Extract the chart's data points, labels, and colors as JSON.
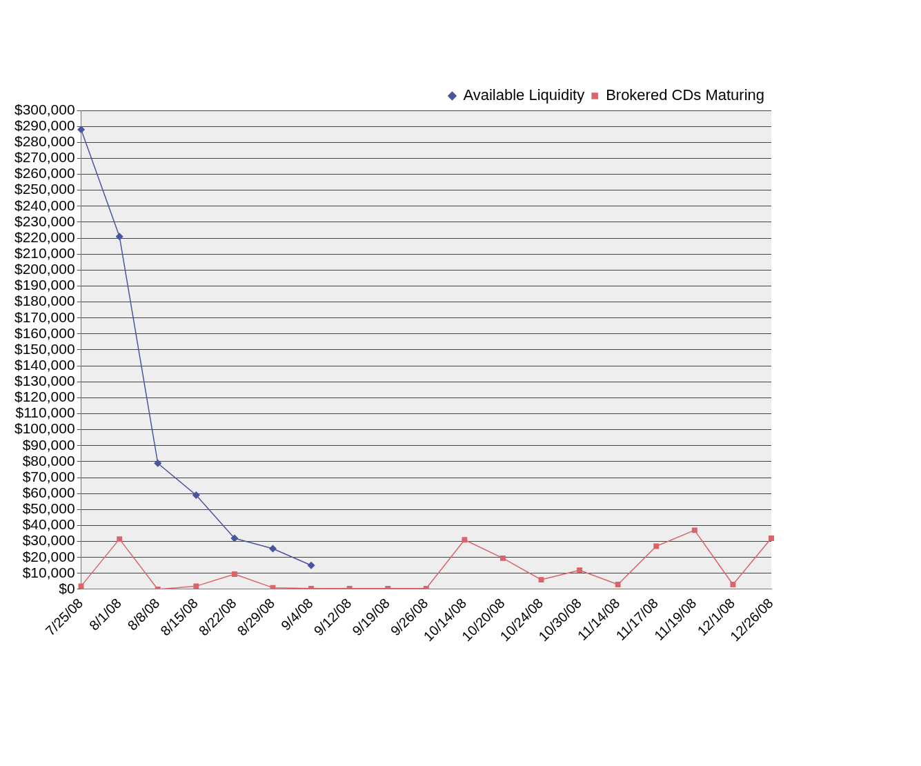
{
  "chart_data": {
    "type": "line",
    "categories": [
      "7/25/08",
      "8/1/08",
      "8/8/08",
      "8/15/08",
      "8/22/08",
      "8/29/08",
      "9/4/08",
      "9/12/08",
      "9/19/08",
      "9/26/08",
      "10/14/08",
      "10/20/08",
      "10/24/08",
      "10/30/08",
      "11/14/08",
      "11/17/08",
      "11/19/08",
      "12/1/08",
      "12/26/08"
    ],
    "series": [
      {
        "name": "Available Liquidity",
        "color": "#4a55a0",
        "marker": "diamond",
        "values": [
          288000,
          221000,
          79000,
          59000,
          32000,
          25500,
          15000,
          null,
          null,
          null,
          null,
          null,
          null,
          null,
          null,
          null,
          null,
          null,
          null
        ]
      },
      {
        "name": "Brokered CDs Maturing",
        "color": "#d9646a",
        "marker": "square",
        "values": [
          2000,
          31500,
          0,
          2000,
          9500,
          1000,
          500,
          500,
          500,
          500,
          31000,
          19500,
          6000,
          12000,
          3000,
          27000,
          37000,
          3000,
          32000
        ]
      }
    ],
    "ylim": [
      0,
      300000
    ],
    "yticks": [
      {
        "value": 0,
        "label": "$0"
      },
      {
        "value": 10000,
        "label": "$10,000"
      },
      {
        "value": 20000,
        "label": "$20,000"
      },
      {
        "value": 30000,
        "label": "$30,000"
      },
      {
        "value": 40000,
        "label": "$40,000"
      },
      {
        "value": 50000,
        "label": "$50,000"
      },
      {
        "value": 60000,
        "label": "$60,000"
      },
      {
        "value": 70000,
        "label": "$70,000"
      },
      {
        "value": 80000,
        "label": "$80,000"
      },
      {
        "value": 90000,
        "label": "$90,000"
      },
      {
        "value": 100000,
        "label": "$100,000"
      },
      {
        "value": 110000,
        "label": "$110,000"
      },
      {
        "value": 120000,
        "label": "$120,000"
      },
      {
        "value": 130000,
        "label": "$130,000"
      },
      {
        "value": 140000,
        "label": "$140,000"
      },
      {
        "value": 150000,
        "label": "$150,000"
      },
      {
        "value": 160000,
        "label": "$160,000"
      },
      {
        "value": 170000,
        "label": "$170,000"
      },
      {
        "value": 180000,
        "label": "$180,000"
      },
      {
        "value": 190000,
        "label": "$190,000"
      },
      {
        "value": 200000,
        "label": "$200,000"
      },
      {
        "value": 210000,
        "label": "$210,000"
      },
      {
        "value": 220000,
        "label": "$220,000"
      },
      {
        "value": 230000,
        "label": "$230,000"
      },
      {
        "value": 240000,
        "label": "$240,000"
      },
      {
        "value": 250000,
        "label": "$250,000"
      },
      {
        "value": 260000,
        "label": "$260,000"
      },
      {
        "value": 270000,
        "label": "$270,000"
      },
      {
        "value": 280000,
        "label": "$280,000"
      },
      {
        "value": 290000,
        "label": "$290,000"
      },
      {
        "value": 300000,
        "label": "$300,000"
      }
    ],
    "grid": "y",
    "legend": "top right"
  }
}
